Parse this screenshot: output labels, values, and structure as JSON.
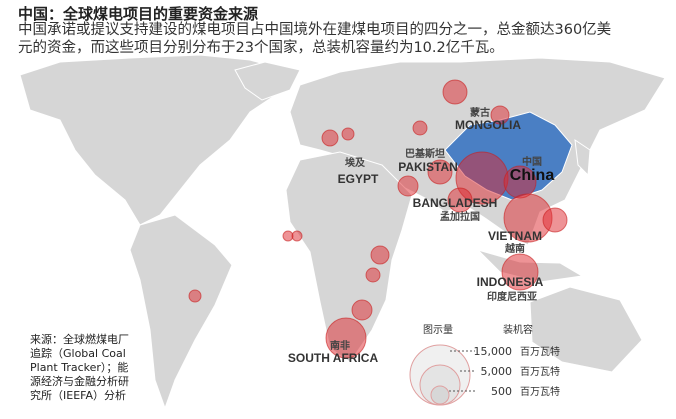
{
  "header": {
    "title": "中国：全球煤电项目的重要资金来源",
    "subtitle": "中国承诺或提议支持建设的煤电项目占中国境外在建煤电项目的四分之一，总金额达360亿美元的资金，而这些项目分别分布于23个国家，总装机容量约为10.2亿千瓦。"
  },
  "labels": {
    "mongolia_zh": "蒙古",
    "mongolia_en": "MONGOLIA",
    "egypt_zh": "埃及",
    "egypt_en": "EGYPT",
    "pakistan_zh": "巴基斯坦",
    "pakistan_en": "PAKISTAN",
    "china_zh": "中国",
    "china_en": "China",
    "bangladesh_en": "BANGLADESH",
    "bangladesh_zh": "孟加拉国",
    "vietnam_en": "VIETNAM",
    "vietnam_zh": "越南",
    "indonesia_en": "INDONESIA",
    "indonesia_zh": "印度尼西亚",
    "south_africa_zh": "南非",
    "south_africa_en": "SOUTH AFRICA"
  },
  "source": "来源：全球燃煤电厂追踪（Global Coal Plant Tracker）；能源经济与金融分析研究所（IEEFA）分析",
  "legend": {
    "title_left": "图示量",
    "title_right": "装机容",
    "items": [
      {
        "value": "15,000",
        "unit": "百万瓦特"
      },
      {
        "value": "5,000",
        "unit": "百万瓦特"
      },
      {
        "value": "500",
        "unit": "百万瓦特"
      }
    ]
  }
}
